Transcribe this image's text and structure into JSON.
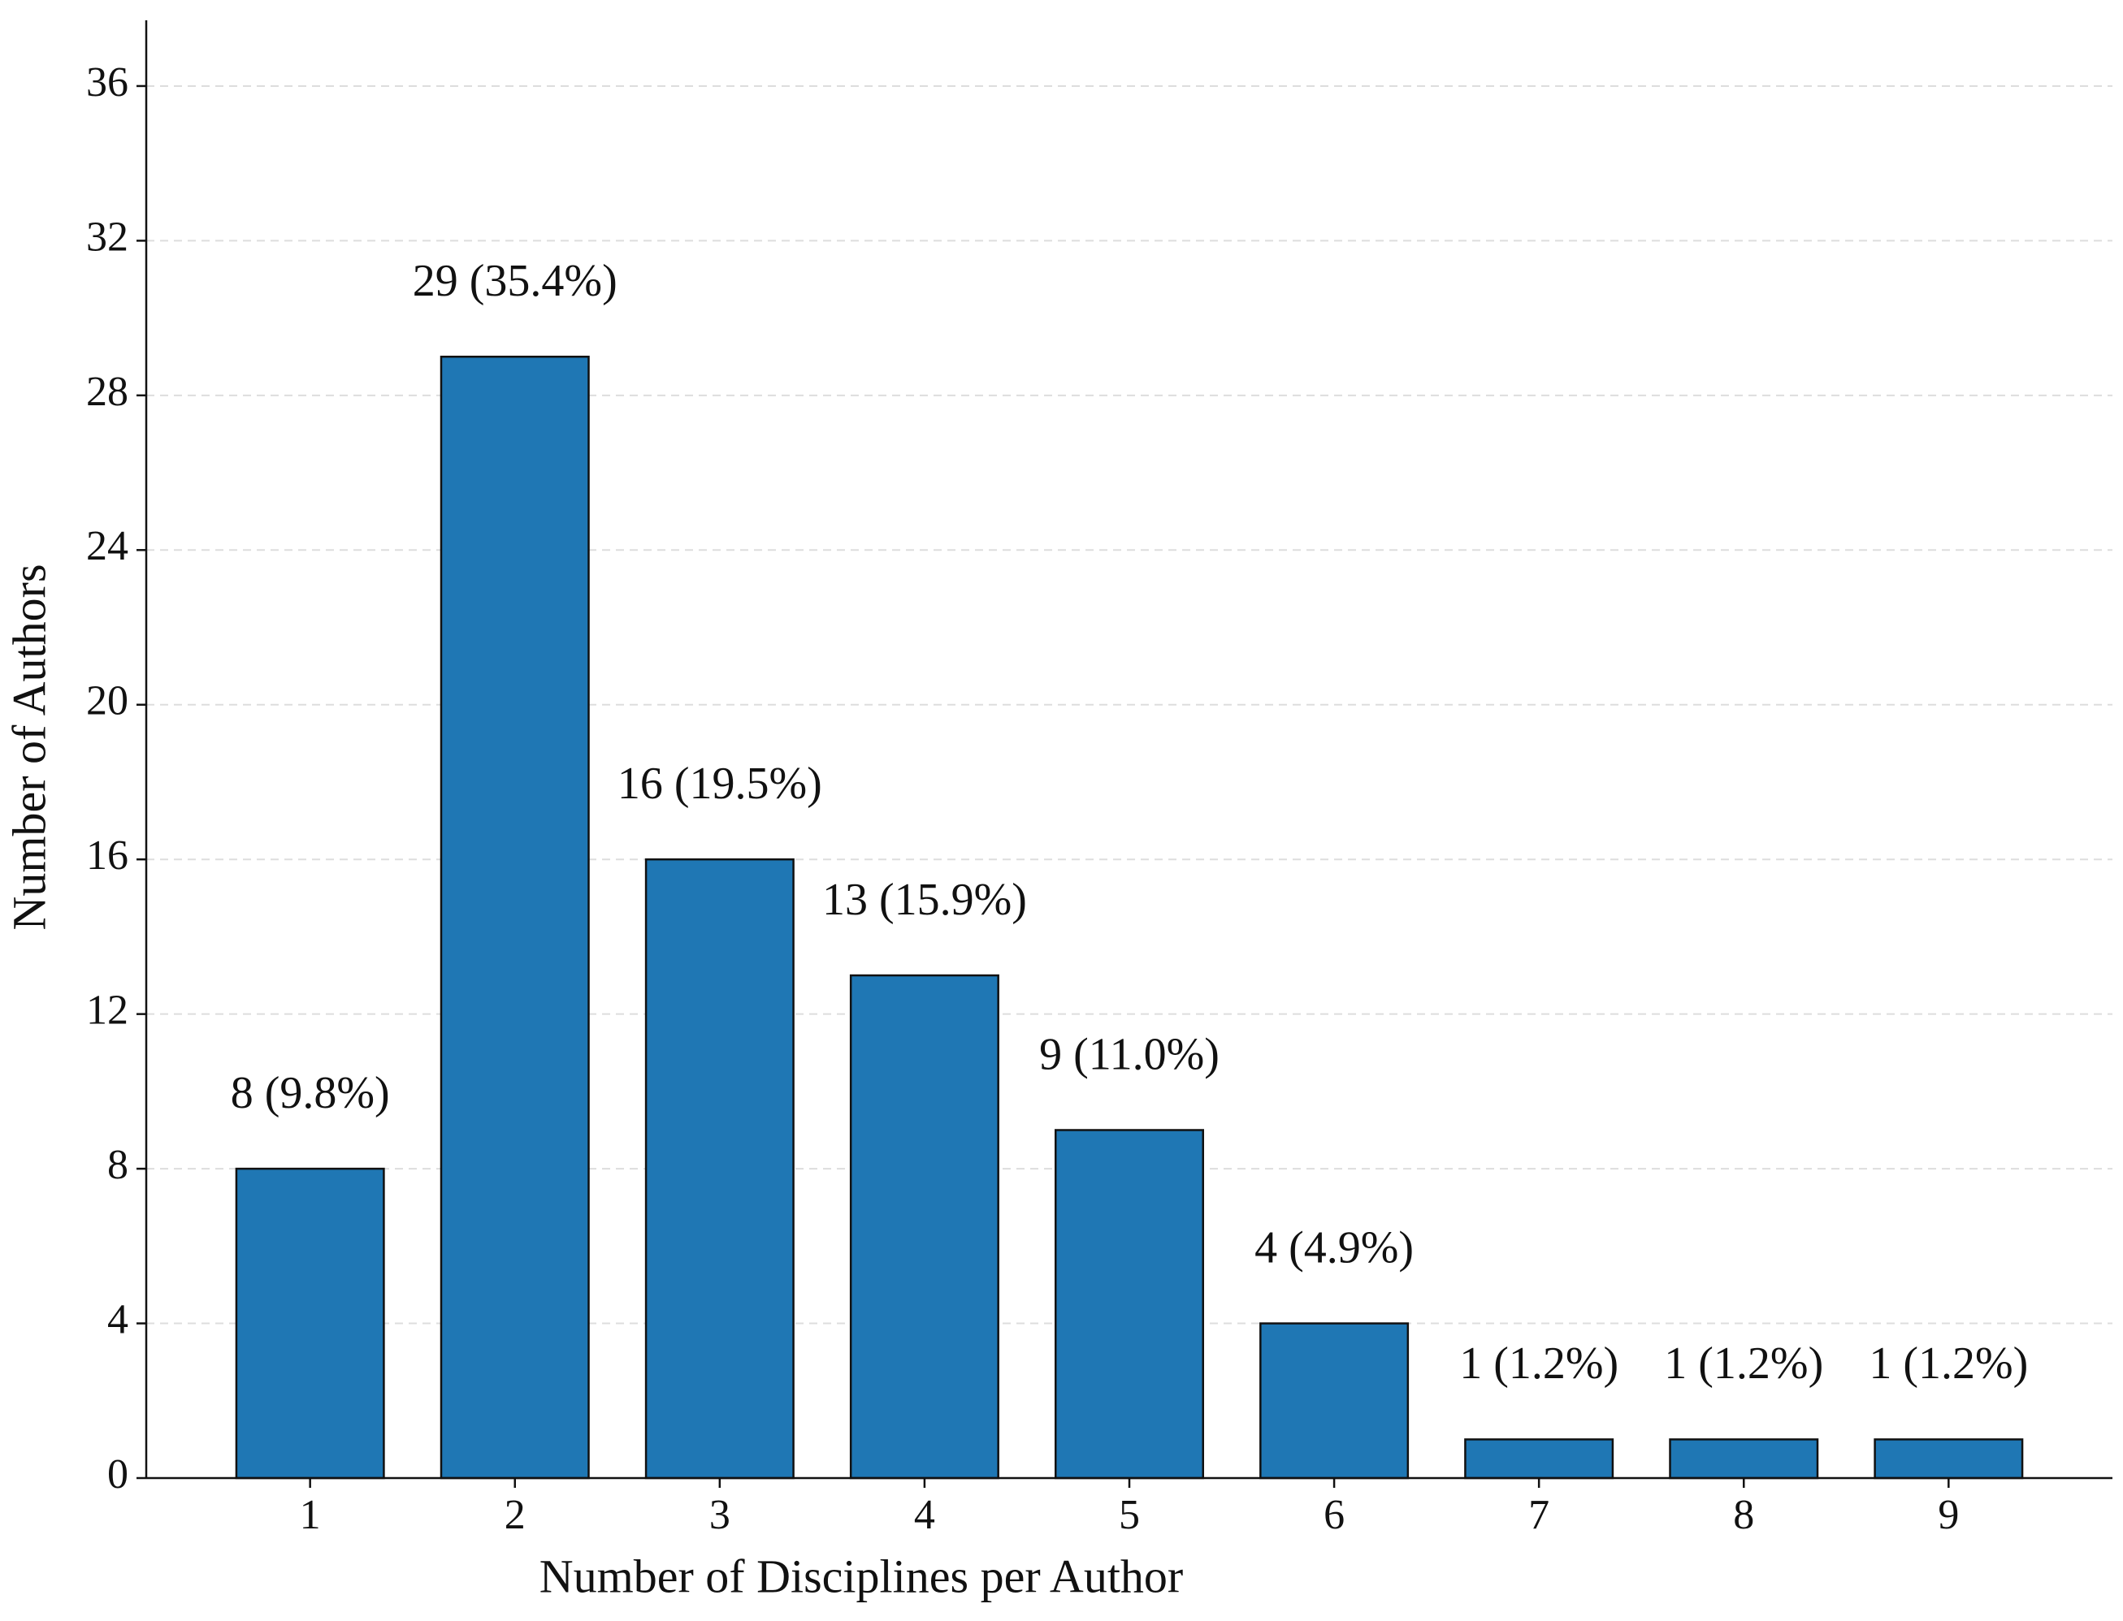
{
  "chart_data": {
    "type": "bar",
    "x_label": "Number of Disciplines per Author",
    "y_label": "Number of Authors",
    "categories": [
      "1",
      "2",
      "3",
      "4",
      "5",
      "6",
      "7",
      "8",
      "9"
    ],
    "values": [
      8,
      29,
      16,
      13,
      9,
      4,
      1,
      1,
      1
    ],
    "value_labels": [
      "8 (9.8%)",
      "29 (35.4%)",
      "16 (19.5%)",
      "13 (15.9%)",
      "9 (11.0%)",
      "4 (4.9%)",
      "1 (1.2%)",
      "1 (1.2%)",
      "1 (1.2%)"
    ],
    "color": "#1f77b4",
    "ylim": [
      0,
      37.7
    ],
    "yticks": [
      0,
      4,
      8,
      12,
      16,
      20,
      24,
      28,
      32,
      36
    ],
    "grid": true
  }
}
